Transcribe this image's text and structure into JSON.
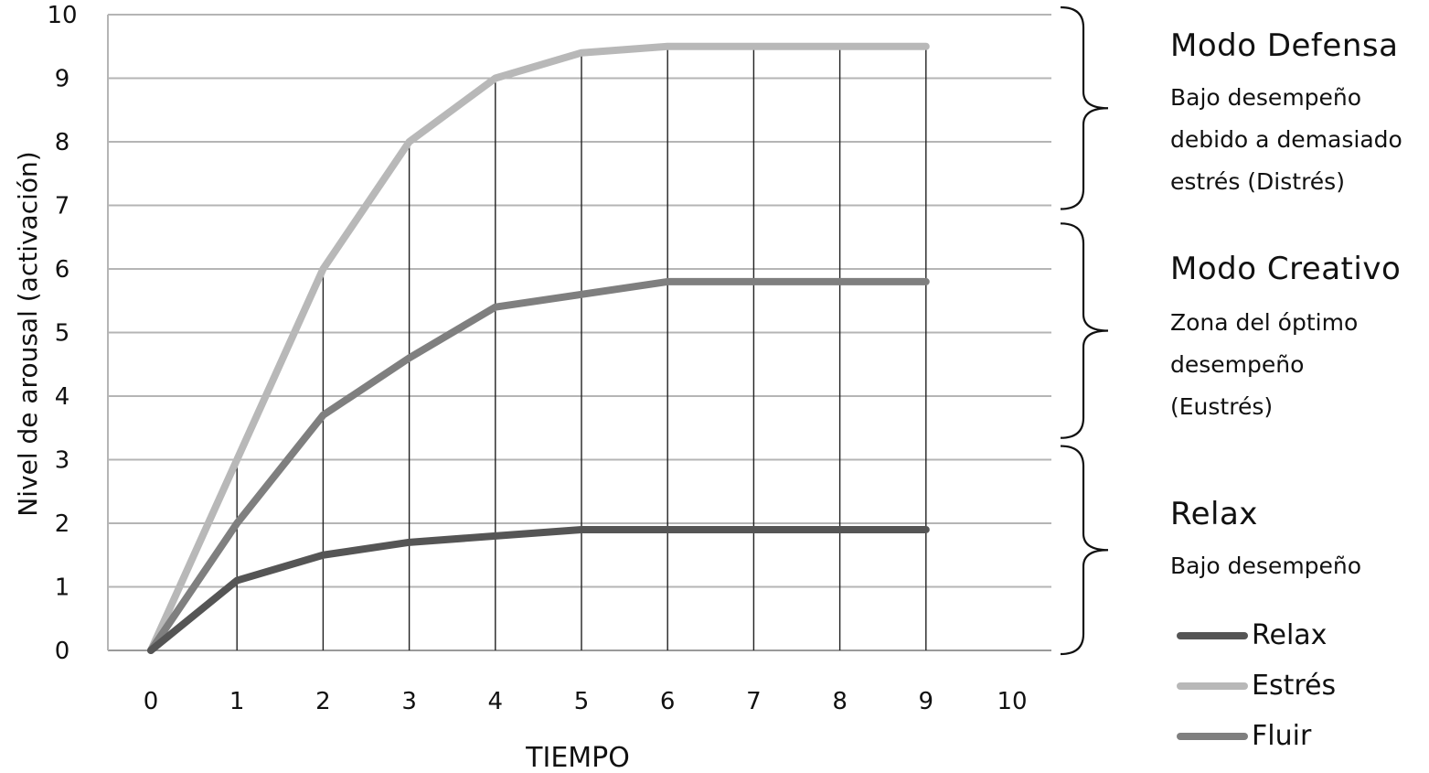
{
  "chart_data": {
    "type": "line",
    "x": [
      0,
      1,
      2,
      3,
      4,
      5,
      6,
      7,
      8,
      9
    ],
    "xticks": [
      "0",
      "1",
      "2",
      "3",
      "4",
      "5",
      "6",
      "7",
      "8",
      "9",
      "10"
    ],
    "yticks": [
      "0",
      "1",
      "2",
      "3",
      "4",
      "5",
      "6",
      "7",
      "8",
      "9",
      "10"
    ],
    "xlim": [
      0,
      10
    ],
    "ylim": [
      0,
      10
    ],
    "xlabel": "TIEMPO",
    "ylabel": "Nivel de arousal (activación)",
    "grid": "horizontal lines every 1 unit; vertical drop lines from Estrés curve at x=1..9",
    "series": [
      {
        "name": "Relax",
        "color": "#555555",
        "values": [
          0,
          1.1,
          1.5,
          1.7,
          1.8,
          1.9,
          1.9,
          1.9,
          1.9,
          1.9
        ]
      },
      {
        "name": "Estrés",
        "color": "#b8b8b8",
        "values": [
          0,
          3.0,
          6.0,
          8.0,
          9.0,
          9.4,
          9.5,
          9.5,
          9.5,
          9.5
        ]
      },
      {
        "name": "Fluir",
        "color": "#7f7f7f",
        "values": [
          0,
          2.0,
          3.7,
          4.6,
          5.4,
          5.6,
          5.8,
          5.8,
          5.8,
          5.8
        ]
      }
    ],
    "legend_position": "bottom-right"
  },
  "annotations": [
    {
      "title": "Modo Defensa",
      "lines": [
        "Bajo desempeño",
        "debido a demasiado",
        "estrés (Distrés)"
      ],
      "range": [
        7,
        10
      ]
    },
    {
      "title": "Modo Creativo",
      "lines": [
        "Zona del óptimo",
        "desempeño",
        "(Eustrés)"
      ],
      "range": [
        3.4,
        6.6
      ]
    },
    {
      "title": "Relax",
      "lines": [
        "Bajo desempeño"
      ],
      "range": [
        0,
        3.1
      ]
    }
  ],
  "legend": [
    {
      "label": "Relax",
      "color": "#555555"
    },
    {
      "label": "Estrés",
      "color": "#b8b8b8"
    },
    {
      "label": "Fluir",
      "color": "#7f7f7f"
    }
  ]
}
